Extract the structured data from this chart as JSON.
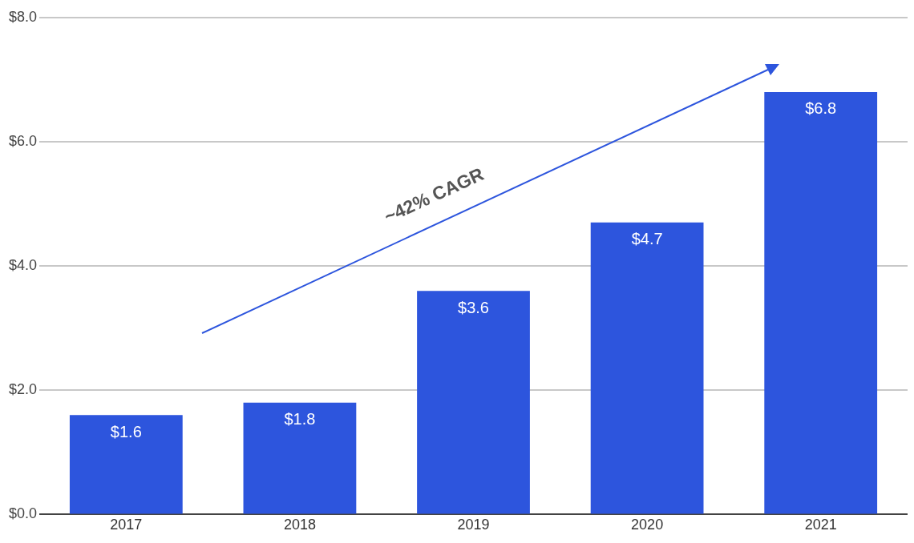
{
  "chart_data": {
    "type": "bar",
    "categories": [
      "2017",
      "2018",
      "2019",
      "2020",
      "2021"
    ],
    "values": [
      1.6,
      1.8,
      3.6,
      4.7,
      6.8
    ],
    "value_labels": [
      "$1.6",
      "$1.8",
      "$3.6",
      "$4.7",
      "$6.8"
    ],
    "color": "#2d55dd",
    "ylim": [
      0,
      8
    ],
    "yticks": [
      {
        "value": 0,
        "label": "$0.0"
      },
      {
        "value": 2,
        "label": "$2.0"
      },
      {
        "value": 4,
        "label": "$4.0"
      },
      {
        "value": 6,
        "label": "$6.0"
      },
      {
        "value": 8,
        "label": "$8.0"
      }
    ],
    "grid": "y",
    "legend": false,
    "annotations": [
      "~42% CAGR"
    ]
  }
}
